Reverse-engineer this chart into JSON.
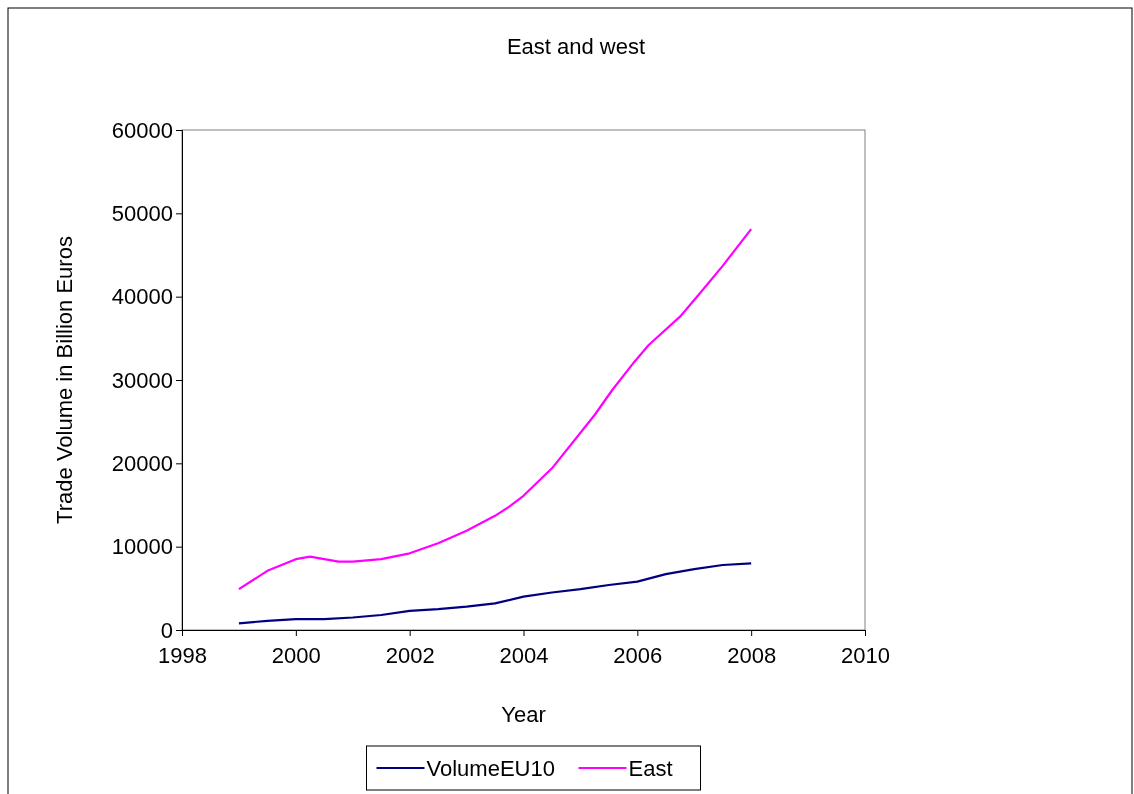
{
  "chart_data": {
    "type": "line",
    "title": "East and west",
    "xlabel": "Year",
    "ylabel": "Trade Volume in Billion Euros",
    "xlim": [
      1998,
      2010
    ],
    "xticks": [
      1998,
      2000,
      2002,
      2004,
      2006,
      2008,
      2010
    ],
    "ylim": [
      0,
      60000
    ],
    "yticks": [
      0,
      10000,
      20000,
      30000,
      40000,
      50000,
      60000
    ],
    "grid": false,
    "legend": "bottom",
    "marker": "none",
    "line_style": "solid",
    "series": [
      {
        "name": "VolumeEU10",
        "color": "#000080",
        "x": [
          1999,
          1999.5,
          2000,
          2000.5,
          2001,
          2001.5,
          2002,
          2002.5,
          2003,
          2003.5,
          2004,
          2004.5,
          2005,
          2005.5,
          2006,
          2006.5,
          2007,
          2007.5,
          2008
        ],
        "values": [
          800,
          1100,
          1300,
          1300,
          1500,
          1800,
          2300,
          2500,
          2800,
          3200,
          4000,
          4500,
          4900,
          5400,
          5800,
          6700,
          7300,
          7800,
          8000
        ]
      },
      {
        "name": "East",
        "color": "#ff00ff",
        "x": [
          1999,
          1999.5,
          2000,
          2000.25,
          2000.75,
          2001,
          2001.5,
          2002,
          2002.5,
          2003,
          2003.5,
          2003.75,
          2004,
          2004.5,
          2005.25,
          2005.56,
          2005.95,
          2006.2,
          2006.75,
          2007.1,
          2007.5,
          2008
        ],
        "values": [
          4900,
          7100,
          8500,
          8800,
          8200,
          8200,
          8500,
          9200,
          10400,
          11900,
          13700,
          14800,
          16100,
          19400,
          25800,
          28800,
          32200,
          34200,
          37600,
          40400,
          43700,
          48100
        ]
      }
    ]
  }
}
